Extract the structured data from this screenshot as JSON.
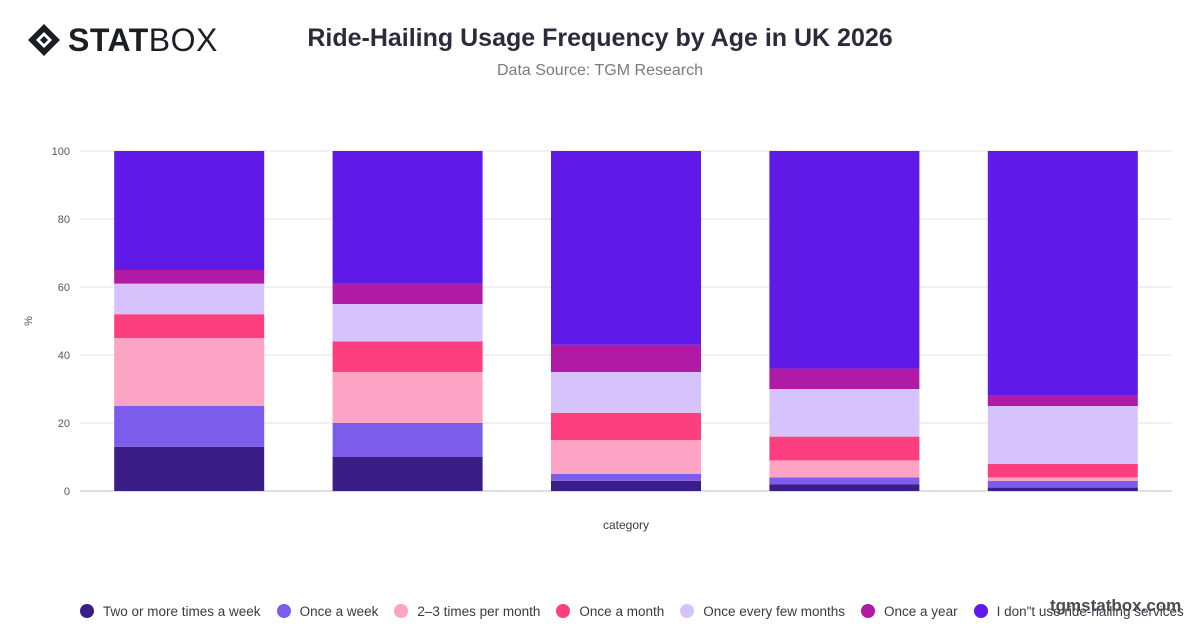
{
  "brand": {
    "bold": "STAT",
    "light": "BOX"
  },
  "watermark": "tgmstatbox.com",
  "chart_data": {
    "type": "bar",
    "stacked": true,
    "title": "Ride-Hailing Usage Frequency by Age in UK 2026",
    "subtitle": "Data Source: TGM Research",
    "xlabel": "category",
    "ylabel": "%",
    "ylim": [
      0,
      100
    ],
    "yticks": [
      0,
      20,
      40,
      60,
      80,
      100
    ],
    "grid": true,
    "legend_position": "bottom",
    "categories": [
      "",
      "",
      "",
      "",
      ""
    ],
    "series": [
      {
        "name": "Two or more times a week",
        "color": "#3a1d85",
        "values": [
          13,
          10,
          3,
          2,
          1
        ]
      },
      {
        "name": "Once a week",
        "color": "#7c5ceb",
        "values": [
          12,
          10,
          2,
          2,
          2
        ]
      },
      {
        "name": "2–3 times per month",
        "color": "#fda4c4",
        "values": [
          20,
          15,
          10,
          5,
          1
        ]
      },
      {
        "name": "Once a month",
        "color": "#fd3f80",
        "values": [
          7,
          9,
          8,
          7,
          4
        ]
      },
      {
        "name": "Once every few months",
        "color": "#d7c3fc",
        "values": [
          9,
          11,
          12,
          14,
          17
        ]
      },
      {
        "name": "Once a year",
        "color": "#b01aa5",
        "values": [
          4,
          6,
          8,
          6,
          3
        ]
      },
      {
        "name": "I don\"t use ride-hailing services",
        "color": "#5f1ae8",
        "values": [
          35,
          39,
          57,
          64,
          72
        ]
      }
    ]
  }
}
